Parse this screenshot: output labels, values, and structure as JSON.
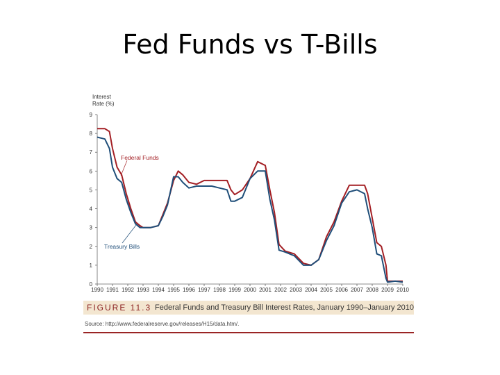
{
  "slide": {
    "title": "Fed Funds vs T-Bills"
  },
  "figure": {
    "number": "FIGURE 11.3",
    "caption": "Federal Funds and Treasury Bill Interest Rates, January 1990–January 2010",
    "source": "Source: http://www.federalreserve.gov/releases/H15/data.htm/."
  },
  "chart_data": {
    "type": "line",
    "ylabel": "Interest Rate (%)",
    "ylabel_lines": [
      "Interest",
      "Rate (%)"
    ],
    "ylim": [
      0,
      9
    ],
    "yticks": [
      0,
      1,
      2,
      3,
      4,
      5,
      6,
      7,
      8,
      9
    ],
    "xlim": [
      1990,
      2010
    ],
    "xticks": [
      "1990",
      "1991",
      "1992",
      "1993",
      "1994",
      "1995",
      "1996",
      "1997",
      "1998",
      "1999",
      "2000",
      "2001",
      "2002",
      "2003",
      "2004",
      "2005",
      "2006",
      "2007",
      "2008",
      "2009",
      "2010"
    ],
    "grid": false,
    "series": [
      {
        "name": "Federal Funds",
        "color": "#a31f24",
        "x": [
          1990.0,
          1990.5,
          1990.8,
          1991.0,
          1991.3,
          1991.6,
          1991.9,
          1992.2,
          1992.5,
          1992.8,
          1993.0,
          1993.5,
          1994.0,
          1994.3,
          1994.6,
          1995.0,
          1995.3,
          1995.6,
          1996.0,
          1996.5,
          1997.0,
          1997.5,
          1998.0,
          1998.5,
          1998.75,
          1999.0,
          1999.5,
          2000.0,
          2000.5,
          2001.0,
          2001.3,
          2001.6,
          2001.9,
          2002.3,
          2002.9,
          2003.5,
          2004.0,
          2004.5,
          2005.0,
          2005.5,
          2006.0,
          2006.5,
          2007.0,
          2007.5,
          2007.7,
          2008.0,
          2008.3,
          2008.6,
          2008.9,
          2009.0,
          2009.5,
          2010.0
        ],
        "values": [
          8.25,
          8.25,
          8.1,
          7.2,
          6.2,
          5.8,
          4.8,
          4.0,
          3.3,
          3.1,
          3.0,
          3.0,
          3.1,
          3.7,
          4.3,
          5.5,
          6.0,
          5.8,
          5.4,
          5.3,
          5.5,
          5.5,
          5.5,
          5.5,
          5.0,
          4.75,
          5.0,
          5.6,
          6.5,
          6.3,
          5.0,
          3.8,
          2.1,
          1.75,
          1.6,
          1.1,
          1.0,
          1.3,
          2.5,
          3.3,
          4.4,
          5.25,
          5.25,
          5.25,
          4.8,
          3.5,
          2.2,
          2.0,
          1.0,
          0.15,
          0.15,
          0.15
        ]
      },
      {
        "name": "Treasury Bills",
        "color": "#1f4e79",
        "x": [
          1990.0,
          1990.5,
          1990.8,
          1991.0,
          1991.3,
          1991.6,
          1991.9,
          1992.2,
          1992.5,
          1992.8,
          1993.0,
          1993.5,
          1994.0,
          1994.3,
          1994.6,
          1995.0,
          1995.3,
          1995.6,
          1996.0,
          1996.5,
          1997.0,
          1997.5,
          1998.0,
          1998.5,
          1998.75,
          1999.0,
          1999.5,
          2000.0,
          2000.5,
          2001.0,
          2001.3,
          2001.6,
          2001.9,
          2002.3,
          2002.9,
          2003.5,
          2004.0,
          2004.5,
          2005.0,
          2005.5,
          2006.0,
          2006.5,
          2007.0,
          2007.5,
          2007.7,
          2008.0,
          2008.3,
          2008.6,
          2008.9,
          2009.0,
          2009.5,
          2010.0
        ],
        "values": [
          7.8,
          7.7,
          7.2,
          6.2,
          5.6,
          5.4,
          4.5,
          3.8,
          3.2,
          3.0,
          3.0,
          3.0,
          3.1,
          3.6,
          4.2,
          5.7,
          5.7,
          5.4,
          5.1,
          5.2,
          5.2,
          5.2,
          5.1,
          5.0,
          4.4,
          4.4,
          4.6,
          5.6,
          6.0,
          6.0,
          4.5,
          3.4,
          1.8,
          1.7,
          1.5,
          1.0,
          1.0,
          1.3,
          2.3,
          3.1,
          4.3,
          4.9,
          5.0,
          4.8,
          4.0,
          3.0,
          1.6,
          1.5,
          0.3,
          0.1,
          0.15,
          0.1
        ]
      }
    ]
  }
}
